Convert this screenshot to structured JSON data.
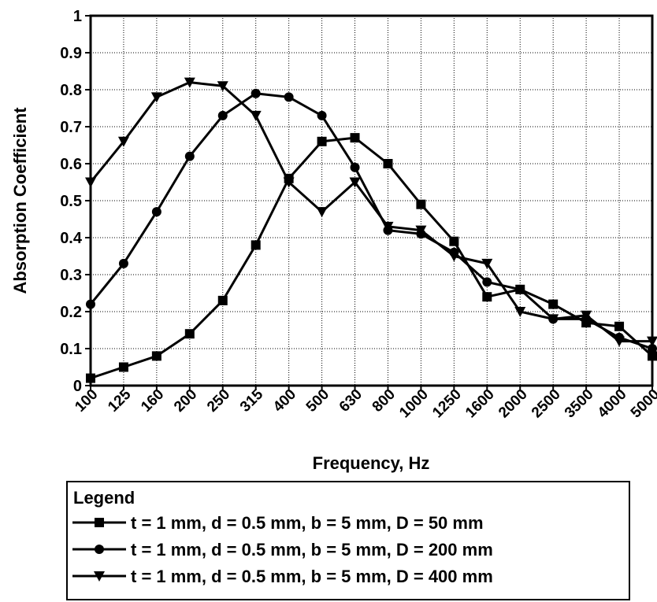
{
  "chart_data": {
    "type": "line",
    "title": "",
    "xlabel": "Frequency, Hz",
    "ylabel": "Absorption Coefficient",
    "categories": [
      "100",
      "125",
      "160",
      "200",
      "250",
      "315",
      "400",
      "500",
      "630",
      "800",
      "1000",
      "1250",
      "1600",
      "2000",
      "2500",
      "3500",
      "4000",
      "5000"
    ],
    "ylim": [
      0,
      1
    ],
    "yticks": [
      "0",
      "0.1",
      "0.2",
      "0.3",
      "0.4",
      "0.5",
      "0.6",
      "0.7",
      "0.8",
      "0.9",
      "1"
    ],
    "grid": true,
    "legend_title": "Legend",
    "legend_position": "bottom",
    "series": [
      {
        "name": "t = 1 mm, d = 0.5 mm, b = 5 mm, D = 50 mm",
        "marker": "square",
        "values": [
          0.02,
          0.05,
          0.08,
          0.14,
          0.23,
          0.38,
          0.56,
          0.66,
          0.67,
          0.6,
          0.49,
          0.39,
          0.24,
          0.26,
          0.22,
          0.17,
          0.16,
          0.08
        ]
      },
      {
        "name": "t = 1 mm, d = 0.5 mm, b = 5 mm, D = 200 mm",
        "marker": "circle",
        "values": [
          0.22,
          0.33,
          0.47,
          0.62,
          0.73,
          0.79,
          0.78,
          0.73,
          0.59,
          0.42,
          0.41,
          0.36,
          0.28,
          0.26,
          0.18,
          0.18,
          0.13,
          0.1
        ]
      },
      {
        "name": "t = 1 mm, d = 0.5 mm, b = 5 mm, D = 400 mm",
        "marker": "triangle-down",
        "values": [
          0.55,
          0.66,
          0.78,
          0.82,
          0.81,
          0.73,
          0.55,
          0.47,
          0.55,
          0.43,
          0.42,
          0.35,
          0.33,
          0.2,
          0.18,
          0.19,
          0.12,
          0.12
        ]
      }
    ],
    "colors": {
      "line": "#000000",
      "grid": "#000000",
      "background": "#ffffff"
    }
  }
}
